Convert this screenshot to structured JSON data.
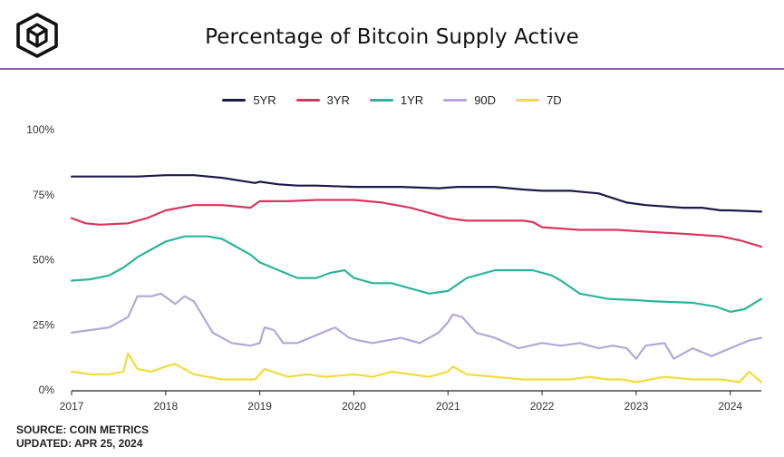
{
  "header": {
    "title": "Percentage of Bitcoin Supply Active",
    "accent_color": "#8e55c8"
  },
  "legend": [
    {
      "label": "5YR",
      "color": "#1b1a4a"
    },
    {
      "label": "3YR",
      "color": "#d9365f"
    },
    {
      "label": "1YR",
      "color": "#2bb59b"
    },
    {
      "label": "90D",
      "color": "#b3a8d8"
    },
    {
      "label": "7D",
      "color": "#f2dc3a"
    }
  ],
  "footer": {
    "source": "SOURCE: COIN METRICS",
    "updated": "UPDATED: APR 25, 2024"
  },
  "chart_data": {
    "type": "line",
    "title": "Percentage of Bitcoin Supply Active",
    "xlabel": "",
    "ylabel": "",
    "x_ticks": [
      "2017",
      "2018",
      "2019",
      "2020",
      "2021",
      "2022",
      "2023",
      "2024"
    ],
    "y_ticks": [
      "0%",
      "25%",
      "50%",
      "75%",
      "100%"
    ],
    "xlim": [
      2017.0,
      2024.33
    ],
    "ylim": [
      0,
      100
    ],
    "grid": false,
    "legend_position": "top-center",
    "series": [
      {
        "name": "5YR",
        "color": "#1b1a4a",
        "x": [
          2017.0,
          2017.5,
          2017.7,
          2018.0,
          2018.3,
          2018.6,
          2018.95,
          2019.0,
          2019.2,
          2019.4,
          2019.6,
          2020.0,
          2020.5,
          2020.9,
          2021.1,
          2021.5,
          2021.8,
          2022.0,
          2022.3,
          2022.6,
          2022.9,
          2023.1,
          2023.5,
          2023.7,
          2023.9,
          2024.0,
          2024.33
        ],
        "y": [
          82,
          82,
          82,
          82.5,
          82.5,
          81.5,
          79.5,
          80,
          79,
          78.5,
          78.5,
          78,
          78,
          77.5,
          78,
          78,
          77,
          76.5,
          76.5,
          75.5,
          72,
          71,
          70,
          70,
          69,
          69,
          68.5
        ]
      },
      {
        "name": "3YR",
        "color": "#d9365f",
        "x": [
          2017.0,
          2017.15,
          2017.3,
          2017.6,
          2017.8,
          2018.0,
          2018.3,
          2018.6,
          2018.9,
          2019.0,
          2019.3,
          2019.6,
          2020.0,
          2020.3,
          2020.6,
          2020.9,
          2021.0,
          2021.2,
          2021.5,
          2021.8,
          2021.9,
          2022.0,
          2022.4,
          2022.8,
          2023.0,
          2023.5,
          2023.9,
          2024.1,
          2024.33
        ],
        "y": [
          66,
          64,
          63.5,
          64,
          66,
          69,
          71,
          71,
          70,
          72.5,
          72.5,
          73,
          73,
          72,
          70,
          67,
          66,
          65,
          65,
          65,
          64.5,
          62.5,
          61.5,
          61.5,
          61,
          60,
          59,
          57.5,
          55
        ]
      },
      {
        "name": "1YR",
        "color": "#2bb59b",
        "x": [
          2017.0,
          2017.2,
          2017.4,
          2017.55,
          2017.7,
          2017.85,
          2018.0,
          2018.2,
          2018.45,
          2018.6,
          2018.9,
          2019.0,
          2019.2,
          2019.4,
          2019.6,
          2019.75,
          2019.9,
          2020.0,
          2020.2,
          2020.4,
          2020.6,
          2020.8,
          2021.0,
          2021.2,
          2021.5,
          2021.7,
          2021.9,
          2022.1,
          2022.2,
          2022.4,
          2022.7,
          2023.0,
          2023.2,
          2023.6,
          2023.85,
          2024.0,
          2024.15,
          2024.33
        ],
        "y": [
          42,
          42.5,
          44,
          47,
          51,
          54,
          57,
          59,
          59,
          58,
          52,
          49,
          46,
          43,
          43,
          45,
          46,
          43,
          41,
          41,
          39,
          37,
          38,
          43,
          46,
          46,
          46,
          44,
          42,
          37,
          35,
          34.5,
          34,
          33.5,
          32,
          30,
          31,
          35
        ]
      },
      {
        "name": "90D",
        "color": "#b3a8d8",
        "x": [
          2017.0,
          2017.2,
          2017.4,
          2017.6,
          2017.7,
          2017.85,
          2017.95,
          2018.1,
          2018.2,
          2018.3,
          2018.5,
          2018.7,
          2018.9,
          2019.0,
          2019.05,
          2019.15,
          2019.25,
          2019.4,
          2019.6,
          2019.8,
          2019.95,
          2020.05,
          2020.2,
          2020.35,
          2020.5,
          2020.7,
          2020.9,
          2021.0,
          2021.05,
          2021.15,
          2021.3,
          2021.5,
          2021.75,
          2022.0,
          2022.2,
          2022.4,
          2022.6,
          2022.75,
          2022.9,
          2023.0,
          2023.1,
          2023.3,
          2023.4,
          2023.6,
          2023.8,
          2024.0,
          2024.2,
          2024.33
        ],
        "y": [
          22,
          23,
          24,
          28,
          36,
          36,
          37,
          33,
          36,
          34,
          22,
          18,
          17,
          18,
          24,
          23,
          18,
          18,
          21,
          24,
          20,
          19,
          18,
          19,
          20,
          18,
          22,
          26,
          29,
          28,
          22,
          20,
          16,
          18,
          17,
          18,
          16,
          17,
          16,
          12,
          17,
          18,
          12,
          16,
          13,
          16,
          19,
          20
        ]
      },
      {
        "name": "7D",
        "color": "#f2dc3a",
        "x": [
          2017.0,
          2017.2,
          2017.4,
          2017.55,
          2017.6,
          2017.7,
          2017.85,
          2018.0,
          2018.1,
          2018.3,
          2018.6,
          2018.85,
          2018.95,
          2019.05,
          2019.3,
          2019.5,
          2019.7,
          2020.0,
          2020.2,
          2020.4,
          2020.6,
          2020.8,
          2021.0,
          2021.05,
          2021.2,
          2021.5,
          2021.8,
          2022.0,
          2022.3,
          2022.5,
          2022.7,
          2022.85,
          2023.0,
          2023.3,
          2023.6,
          2023.9,
          2024.1,
          2024.2,
          2024.33
        ],
        "y": [
          7,
          6,
          6,
          7,
          14,
          8,
          7,
          9,
          10,
          6,
          4,
          4,
          4,
          8,
          5,
          6,
          5,
          6,
          5,
          7,
          6,
          5,
          7,
          9,
          6,
          5,
          4,
          4,
          4,
          5,
          4,
          4,
          3,
          5,
          4,
          4,
          3,
          7,
          3
        ]
      }
    ]
  }
}
